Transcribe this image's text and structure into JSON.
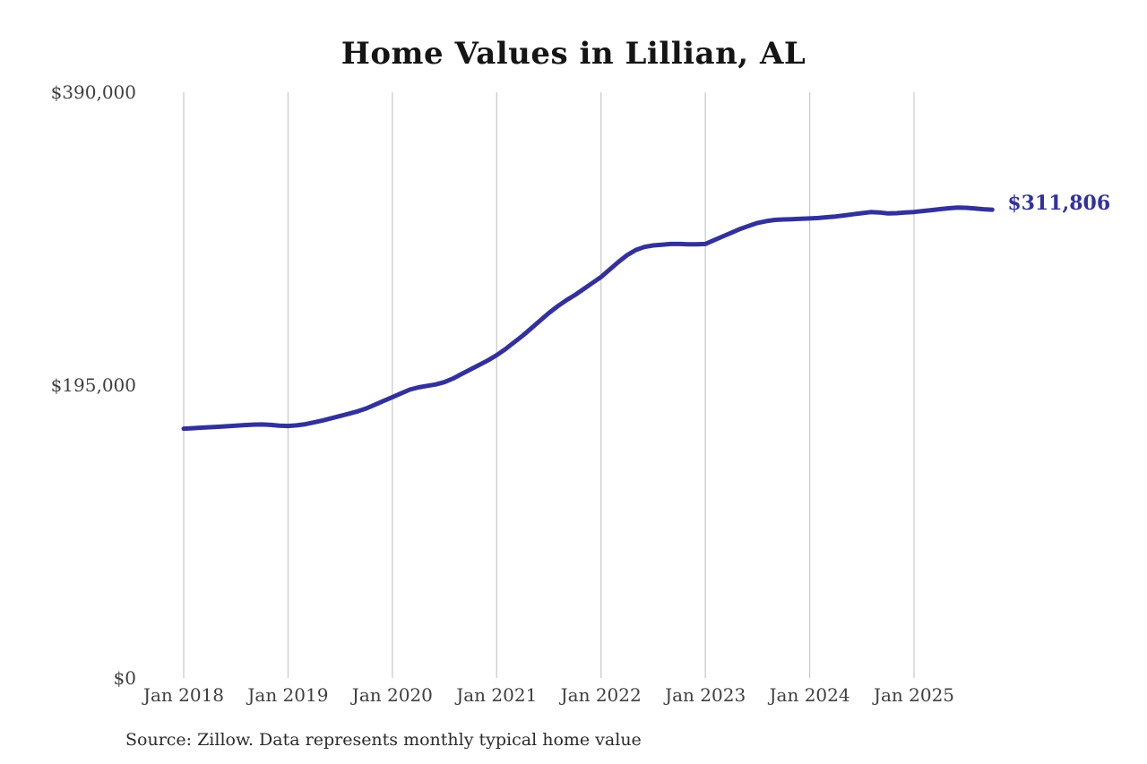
{
  "source_note": "Source: Zillow. Data represents monthly typical home value",
  "chart_data": {
    "type": "line",
    "title": "Home Values in Lillian, AL",
    "series_name": "Monthly typical home value",
    "end_label": "$311,806",
    "line_color": "#32319c",
    "grid_color": "#cbcbcb",
    "ylim": [
      0,
      390000
    ],
    "grid": "vertical-only",
    "legend": "none",
    "y_ticks": [
      {
        "label": "$390,000",
        "value": 390000
      },
      {
        "label": "$195,000",
        "value": 195000
      },
      {
        "label": "$0",
        "value": 0
      }
    ],
    "x_tick_labels": [
      "Jan 2018",
      "Jan 2019",
      "Jan 2020",
      "Jan 2021",
      "Jan 2022",
      "Jan 2023",
      "Jan 2024",
      "Jan 2025"
    ],
    "x": [
      "Jan 2018",
      "Feb 2018",
      "Mar 2018",
      "Apr 2018",
      "May 2018",
      "Jun 2018",
      "Jul 2018",
      "Aug 2018",
      "Sep 2018",
      "Oct 2018",
      "Nov 2018",
      "Dec 2018",
      "Jan 2019",
      "Feb 2019",
      "Mar 2019",
      "Apr 2019",
      "May 2019",
      "Jun 2019",
      "Jul 2019",
      "Aug 2019",
      "Sep 2019",
      "Oct 2019",
      "Nov 2019",
      "Dec 2019",
      "Jan 2020",
      "Feb 2020",
      "Mar 2020",
      "Apr 2020",
      "May 2020",
      "Jun 2020",
      "Jul 2020",
      "Aug 2020",
      "Sep 2020",
      "Oct 2020",
      "Nov 2020",
      "Dec 2020",
      "Jan 2021",
      "Feb 2021",
      "Mar 2021",
      "Apr 2021",
      "May 2021",
      "Jun 2021",
      "Jul 2021",
      "Aug 2021",
      "Sep 2021",
      "Oct 2021",
      "Nov 2021",
      "Dec 2021",
      "Jan 2022",
      "Feb 2022",
      "Mar 2022",
      "Apr 2022",
      "May 2022",
      "Jun 2022",
      "Jul 2022",
      "Aug 2022",
      "Sep 2022",
      "Oct 2022",
      "Nov 2022",
      "Dec 2022",
      "Jan 2023",
      "Feb 2023",
      "Mar 2023",
      "Apr 2023",
      "May 2023",
      "Jun 2023",
      "Jul 2023",
      "Aug 2023",
      "Sep 2023",
      "Oct 2023",
      "Nov 2023",
      "Dec 2023",
      "Jan 2024",
      "Feb 2024",
      "Mar 2024",
      "Apr 2024",
      "May 2024",
      "Jun 2024",
      "Jul 2024",
      "Aug 2024",
      "Sep 2024",
      "Oct 2024",
      "Nov 2024",
      "Dec 2024",
      "Jan 2025",
      "Feb 2025",
      "Mar 2025",
      "Apr 2025",
      "May 2025",
      "Jun 2025",
      "Jul 2025",
      "Aug 2025",
      "Sep 2025",
      "Oct 2025"
    ],
    "values": [
      166000,
      166300,
      166700,
      167000,
      167300,
      167600,
      168000,
      168400,
      168700,
      168800,
      168500,
      168000,
      167800,
      168200,
      169000,
      170200,
      171500,
      173000,
      174500,
      176000,
      177500,
      179500,
      182000,
      184500,
      187000,
      189500,
      192000,
      193500,
      194500,
      195500,
      197000,
      199500,
      202500,
      205500,
      208500,
      211500,
      215000,
      219000,
      223500,
      228000,
      233000,
      238000,
      243000,
      247500,
      251500,
      255000,
      259000,
      263000,
      267000,
      272000,
      277000,
      281500,
      285000,
      287000,
      288000,
      288500,
      289000,
      289000,
      288800,
      288800,
      289000,
      291500,
      294000,
      296500,
      299000,
      301000,
      303000,
      304200,
      305000,
      305300,
      305500,
      305800,
      306000,
      306300,
      306800,
      307300,
      308000,
      308800,
      309500,
      310200,
      310000,
      309300,
      309500,
      310000,
      310300,
      310900,
      311500,
      312200,
      312800,
      313200,
      313100,
      312600,
      312100,
      311806
    ]
  }
}
